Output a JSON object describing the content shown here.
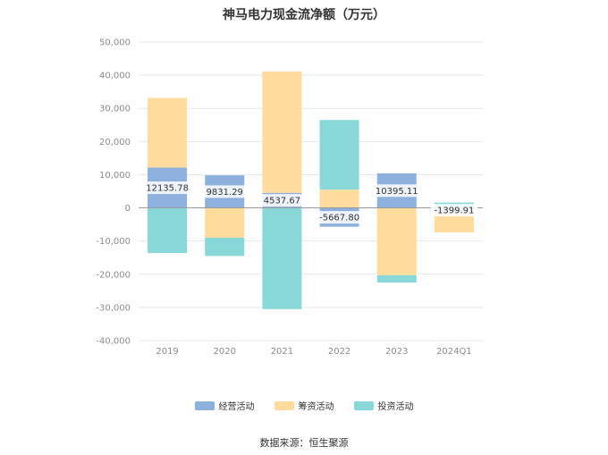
{
  "title": "神马电力现金流净额（万元）",
  "source": "数据来源：恒生聚源",
  "chart_data": {
    "type": "bar",
    "stacked": true,
    "categories": [
      "2019",
      "2020",
      "2021",
      "2022",
      "2023",
      "2024Q1"
    ],
    "ylim": [
      -40000,
      50000
    ],
    "yticks": [
      50000,
      40000,
      30000,
      20000,
      10000,
      0,
      -10000,
      -20000,
      -30000,
      -40000
    ],
    "ytick_labels": [
      "50,000",
      "40,000",
      "30,000",
      "20,000",
      "10,000",
      "0",
      "-10,000",
      "-20,000",
      "-30,000",
      "-40,000"
    ],
    "grid": true,
    "legend_position": "bottom",
    "series": [
      {
        "name": "经营活动",
        "color": "#8eb0dd",
        "values": [
          12135.78,
          9831.29,
          4537.67,
          -5667.8,
          10395.11,
          -1399.91
        ],
        "labels": [
          "12135.78",
          "9831.29",
          "4537.67",
          "-5667.80",
          "10395.11",
          "-1399.91"
        ]
      },
      {
        "name": "筹资活动",
        "color": "#ffdb9e",
        "values": [
          21000,
          -9000,
          36600,
          5500,
          -20300,
          -6000
        ]
      },
      {
        "name": "投资活动",
        "color": "#88d7d9",
        "values": [
          -13600,
          -5500,
          -30500,
          21000,
          -2200,
          1600
        ]
      }
    ]
  }
}
